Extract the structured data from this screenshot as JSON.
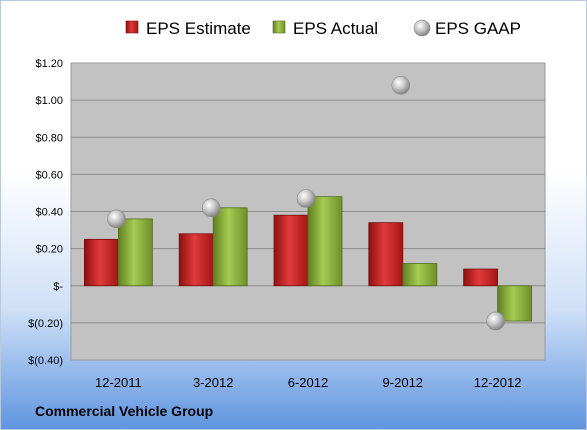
{
  "company_label": "Commercial Vehicle Group",
  "chart_data": {
    "type": "bar",
    "categories": [
      "12-2011",
      "3-2012",
      "6-2012",
      "9-2012",
      "12-2012"
    ],
    "series": [
      {
        "name": "EPS Estimate",
        "kind": "bar",
        "color": "#d42a2a",
        "values": [
          0.25,
          0.28,
          0.38,
          0.34,
          0.09
        ]
      },
      {
        "name": "EPS Actual",
        "kind": "bar",
        "color": "#8fb83d",
        "values": [
          0.36,
          0.42,
          0.48,
          0.12,
          -0.19
        ]
      },
      {
        "name": "EPS GAAP",
        "kind": "marker",
        "color": "#b8b8b8",
        "values": [
          0.36,
          0.42,
          0.47,
          1.08,
          -0.19
        ]
      }
    ],
    "ylim": [
      -0.4,
      1.2
    ],
    "yticks": [
      -0.4,
      -0.2,
      0,
      0.2,
      0.4,
      0.6,
      0.8,
      1.0,
      1.2
    ],
    "ytick_labels": [
      "$(0.40)",
      "$(0.20)",
      "$-",
      "$0.20",
      "$0.40",
      "$0.60",
      "$0.80",
      "$1.00",
      "$1.20"
    ],
    "legend_position": "top",
    "grid": true,
    "xlabel": "",
    "ylabel": ""
  }
}
